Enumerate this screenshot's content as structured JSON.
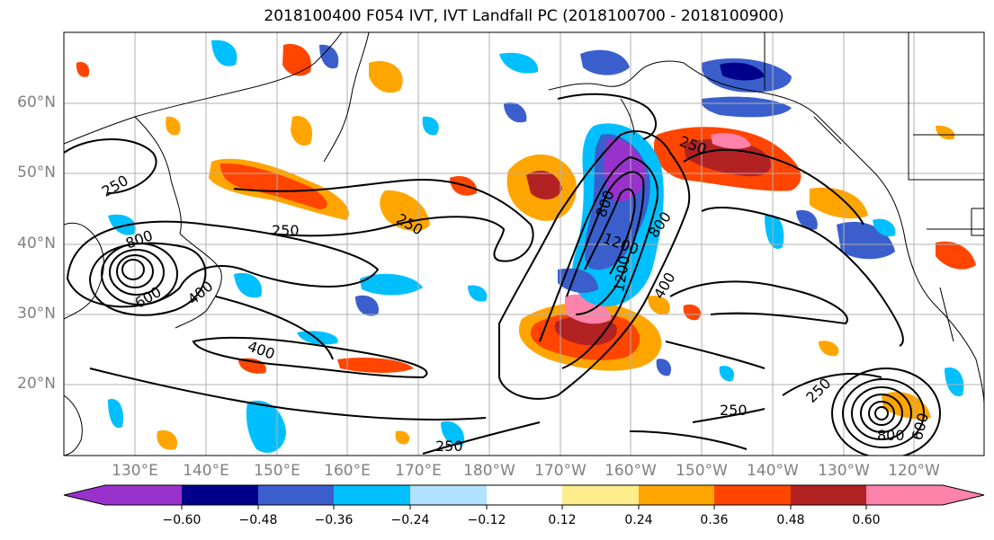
{
  "title": "2018100400 F054 IVT, IVT Landfall PC (2018100700 - 2018100900)",
  "lat_labels": [
    "60°N",
    "50°N",
    "40°N",
    "30°N",
    "20°N"
  ],
  "lon_labels": [
    "130°E",
    "140°E",
    "150°E",
    "160°E",
    "170°E",
    "180°W",
    "170°W",
    "160°W",
    "150°W",
    "140°W",
    "130°W",
    "120°W"
  ],
  "colorbar": {
    "colors": [
      "#9932cc",
      "#00008b",
      "#3a5fcd",
      "#00bfff",
      "#b0e2ff",
      "#ffffff",
      "#ffec8b",
      "#ffa500",
      "#ff4500",
      "#b22222",
      "#ff82ab"
    ],
    "ticks": [
      "−0.60",
      "−0.48",
      "−0.36",
      "−0.24",
      "−0.12",
      "0.12",
      "0.24",
      "0.36",
      "0.48",
      "0.60"
    ]
  },
  "contour_labels": [
    "250",
    "250",
    "250",
    "250",
    "250",
    "250",
    "250",
    "400",
    "400",
    "400",
    "800",
    "800",
    "800",
    "800",
    "1200",
    "1200",
    "600",
    "600"
  ]
}
